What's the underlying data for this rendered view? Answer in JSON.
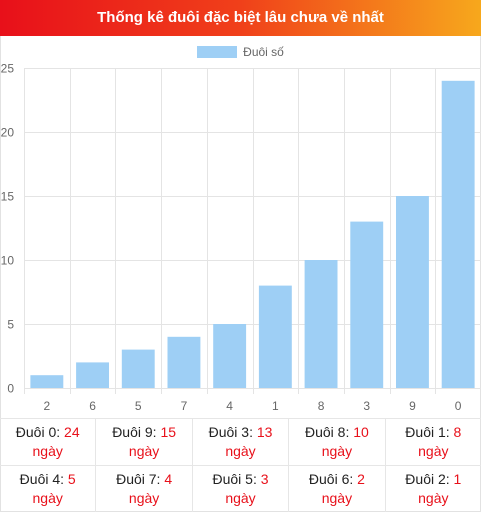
{
  "title": "Thống kê đuôi đặc biệt lâu chưa về nhất",
  "chart_data": {
    "type": "bar",
    "categories": [
      "2",
      "6",
      "5",
      "7",
      "4",
      "1",
      "8",
      "3",
      "9",
      "0"
    ],
    "series": [
      {
        "name": "Đuôi số",
        "values": [
          1,
          2,
          3,
          4,
          5,
          8,
          10,
          13,
          15,
          24
        ],
        "color": "#9ecff5"
      }
    ],
    "ylim": [
      0,
      25
    ],
    "yticks": [
      0,
      5,
      10,
      15,
      20,
      25
    ],
    "grid": true,
    "legend": "top-center"
  },
  "stats": [
    {
      "label": "Đuôi 0:",
      "value": "24",
      "unit": "ngày"
    },
    {
      "label": "Đuôi 9:",
      "value": "15",
      "unit": "ngày"
    },
    {
      "label": "Đuôi 3:",
      "value": "13",
      "unit": "ngày"
    },
    {
      "label": "Đuôi 8:",
      "value": "10",
      "unit": "ngày"
    },
    {
      "label": "Đuôi 1:",
      "value": "8",
      "unit": "ngày"
    },
    {
      "label": "Đuôi 4:",
      "value": "5",
      "unit": "ngày"
    },
    {
      "label": "Đuôi 7:",
      "value": "4",
      "unit": "ngày"
    },
    {
      "label": "Đuôi 5:",
      "value": "3",
      "unit": "ngày"
    },
    {
      "label": "Đuôi 6:",
      "value": "2",
      "unit": "ngày"
    },
    {
      "label": "Đuôi 2:",
      "value": "1",
      "unit": "ngày"
    }
  ]
}
